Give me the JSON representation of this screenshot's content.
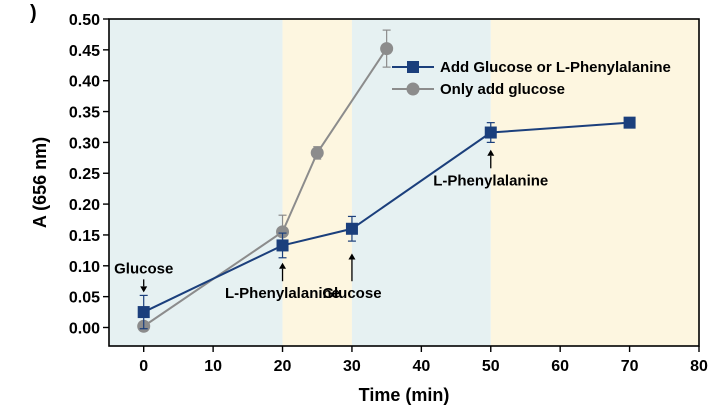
{
  "panel_label": ")",
  "chart_data": {
    "type": "line",
    "xlabel": "Time (min)",
    "ylabel": "A (656 nm)",
    "xlim": [
      -5,
      80
    ],
    "ylim": [
      -0.03,
      0.5
    ],
    "x_ticks": [
      0,
      10,
      20,
      30,
      40,
      50,
      60,
      70,
      80
    ],
    "y_ticks": [
      0.0,
      0.05,
      0.1,
      0.15,
      0.2,
      0.25,
      0.3,
      0.35,
      0.4,
      0.45,
      0.5
    ],
    "x_tick_labels": [
      "0",
      "10",
      "20",
      "30",
      "40",
      "50",
      "60",
      "70",
      "80"
    ],
    "y_tick_labels": [
      "0.00",
      "0.05",
      "0.10",
      "0.15",
      "0.20",
      "0.25",
      "0.30",
      "0.35",
      "0.40",
      "0.45",
      "0.50"
    ],
    "background_bands": [
      {
        "from": -5,
        "to": 20,
        "color": "#e6f1f2"
      },
      {
        "from": 20,
        "to": 30,
        "color": "#fdf6e0"
      },
      {
        "from": 30,
        "to": 50,
        "color": "#e6f1f2"
      },
      {
        "from": 50,
        "to": 80,
        "color": "#fdf6e0"
      }
    ],
    "series": [
      {
        "name": "Add Glucose or L-Phenylalanine",
        "color": "#1b3f7c",
        "marker": "square",
        "points": [
          {
            "x": 0,
            "y": 0.025,
            "err": 0.027
          },
          {
            "x": 20,
            "y": 0.133,
            "err": 0.02
          },
          {
            "x": 30,
            "y": 0.16,
            "err": 0.02
          },
          {
            "x": 50,
            "y": 0.316,
            "err": 0.016
          },
          {
            "x": 70,
            "y": 0.332,
            "err": 0
          }
        ]
      },
      {
        "name": "Only add glucose",
        "color": "#8c8c8c",
        "marker": "circle",
        "points": [
          {
            "x": 0,
            "y": 0.002,
            "err": 0
          },
          {
            "x": 20,
            "y": 0.155,
            "err": 0.027
          },
          {
            "x": 25,
            "y": 0.283,
            "err": 0.01
          },
          {
            "x": 35,
            "y": 0.452,
            "err": 0.03
          }
        ]
      }
    ],
    "annotations": [
      {
        "text": "Glucose",
        "x": 0,
        "arrow_from": 0.078,
        "arrow_to": 0.057,
        "text_position": "above"
      },
      {
        "text": "L-Phenylalanine",
        "x": 20,
        "arrow_from": 0.075,
        "arrow_to": 0.105,
        "text_position": "below"
      },
      {
        "text": "Glucose",
        "x": 30,
        "arrow_from": 0.075,
        "arrow_to": 0.12,
        "text_position": "below"
      },
      {
        "text": "L-Phenylalanine",
        "x": 50,
        "arrow_from": 0.258,
        "arrow_to": 0.288,
        "text_position": "below"
      }
    ],
    "legend": {
      "placement": "top-right"
    },
    "grid": false
  }
}
